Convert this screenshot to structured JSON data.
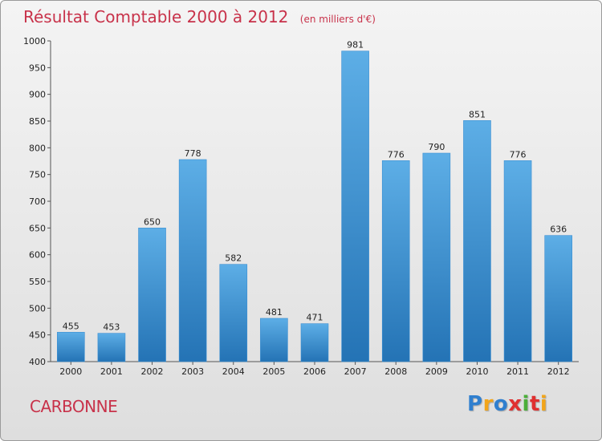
{
  "chart_data": {
    "type": "bar",
    "title": "Résultat Comptable 2000 à 2012",
    "unit_note": "(en milliers d'€)",
    "categories": [
      "2000",
      "2001",
      "2002",
      "2003",
      "2004",
      "2005",
      "2006",
      "2007",
      "2008",
      "2009",
      "2010",
      "2011",
      "2012"
    ],
    "values": [
      455,
      453,
      650,
      778,
      582,
      481,
      471,
      981,
      776,
      790,
      851,
      776,
      636
    ],
    "ylim": [
      400,
      1000
    ],
    "yticks": [
      400,
      450,
      500,
      550,
      600,
      650,
      700,
      750,
      800,
      850,
      900,
      950,
      1000
    ],
    "xlabel": "",
    "ylabel": "",
    "grid": false
  },
  "footer": {
    "place": "CARBONNE",
    "logo_letters": [
      "P",
      "r",
      "o",
      "x",
      "i",
      "t",
      "i"
    ]
  },
  "colors": {
    "title": "#c8324a",
    "bar_top": "#5daee6",
    "bar_bottom": "#2473b5",
    "logo": [
      "#2f7fcf",
      "#f2a51a",
      "#2f7fcf",
      "#e03030",
      "#4caf3a",
      "#e03030",
      "#f2a51a"
    ]
  }
}
